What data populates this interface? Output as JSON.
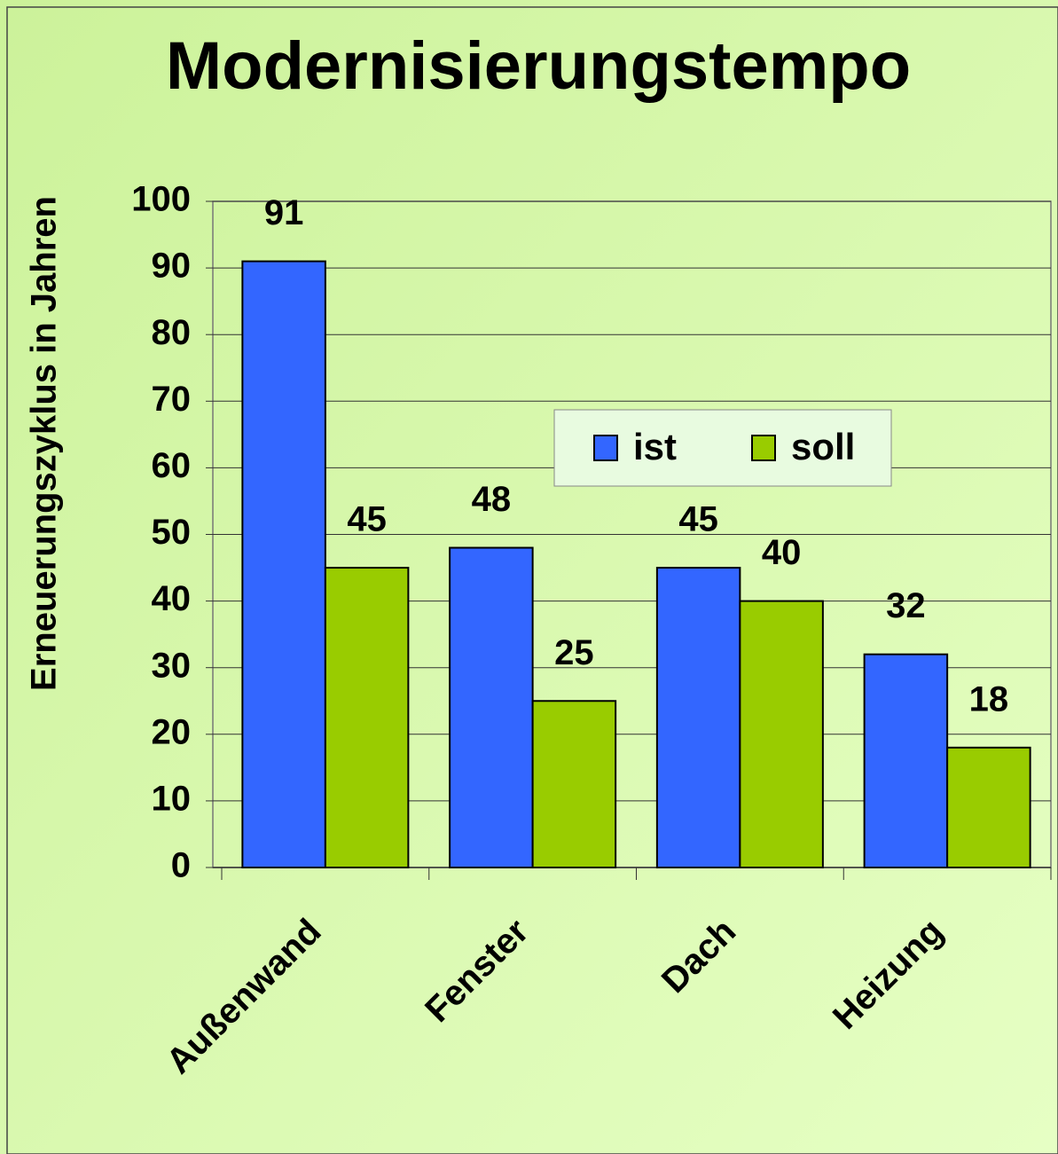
{
  "chart_data": {
    "type": "bar",
    "title": "Modernisierungstempo",
    "y_label": "Erneuerungszyklus in Jahren",
    "categories": [
      "Außenwand",
      "Fenster",
      "Dach",
      "Heizung"
    ],
    "series": [
      {
        "name": "ist",
        "color": "#3366ff",
        "values": [
          91,
          48,
          45,
          32
        ]
      },
      {
        "name": "soll",
        "color": "#99cc00",
        "values": [
          45,
          25,
          40,
          18
        ]
      }
    ],
    "ylim": [
      0,
      100
    ],
    "yticks": [
      0,
      10,
      20,
      30,
      40,
      50,
      60,
      70,
      80,
      90,
      100
    ],
    "grid": true,
    "legend": "upper right"
  }
}
